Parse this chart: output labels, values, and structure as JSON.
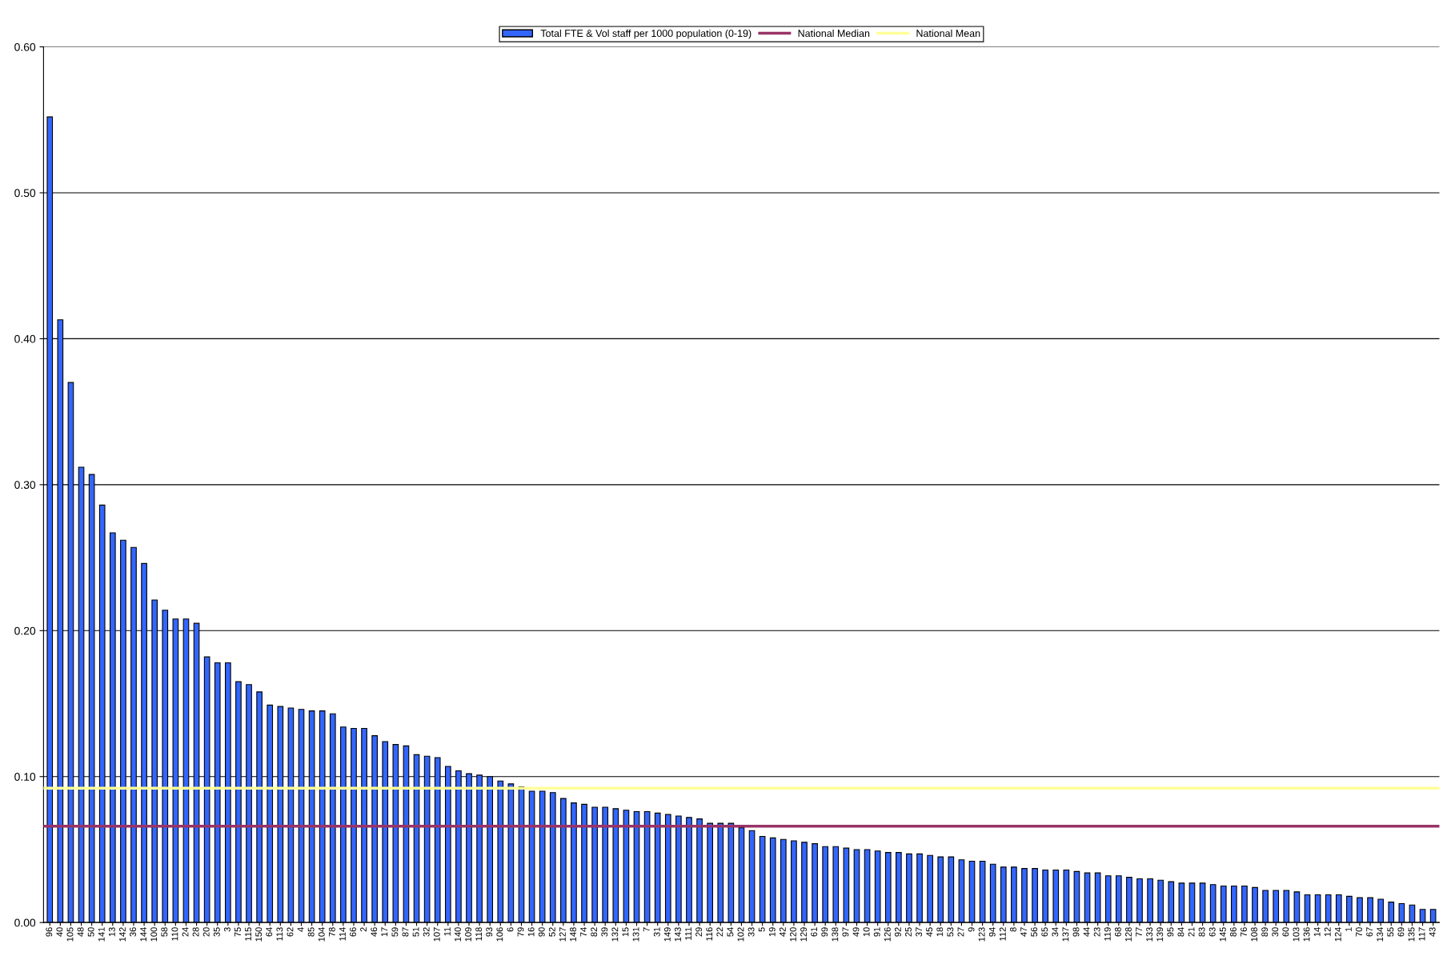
{
  "chart_data": {
    "type": "bar",
    "categories": [
      "96",
      "40",
      "105",
      "48",
      "50",
      "141",
      "13",
      "142",
      "36",
      "144",
      "100",
      "58",
      "110",
      "24",
      "28",
      "20",
      "35",
      "3",
      "75",
      "115",
      "150",
      "64",
      "113",
      "62",
      "4",
      "85",
      "104",
      "78",
      "114",
      "66",
      "2",
      "46",
      "17",
      "59",
      "87",
      "51",
      "32",
      "107",
      "11",
      "140",
      "109",
      "118",
      "93",
      "106",
      "6",
      "79",
      "16",
      "90",
      "52",
      "127",
      "148",
      "74",
      "82",
      "39",
      "132",
      "15",
      "131",
      "7",
      "31",
      "149",
      "143",
      "111",
      "29",
      "116",
      "22",
      "54",
      "102",
      "33",
      "5",
      "19",
      "42",
      "120",
      "129",
      "61",
      "99",
      "138",
      "97",
      "49",
      "10",
      "91",
      "126",
      "92",
      "25",
      "37",
      "45",
      "18",
      "53",
      "27",
      "9",
      "123",
      "94",
      "112",
      "8",
      "47",
      "56",
      "65",
      "34",
      "137",
      "98",
      "44",
      "23",
      "119",
      "68",
      "128",
      "77",
      "133",
      "139",
      "95",
      "84",
      "21",
      "83",
      "63",
      "145",
      "86",
      "76",
      "108",
      "89",
      "30",
      "60",
      "103",
      "136",
      "14",
      "12",
      "124",
      "1",
      "70",
      "67",
      "134",
      "55",
      "69",
      "135",
      "117",
      "43"
    ],
    "series": [
      {
        "name": "Total FTE & Vol staff per 1000 population (0-19)",
        "color": "#3366ff",
        "values": [
          0.552,
          0.413,
          0.37,
          0.312,
          0.307,
          0.286,
          0.267,
          0.262,
          0.257,
          0.246,
          0.221,
          0.214,
          0.208,
          0.208,
          0.205,
          0.182,
          0.178,
          0.178,
          0.165,
          0.163,
          0.158,
          0.149,
          0.148,
          0.147,
          0.146,
          0.145,
          0.145,
          0.143,
          0.134,
          0.133,
          0.133,
          0.128,
          0.124,
          0.122,
          0.121,
          0.115,
          0.114,
          0.113,
          0.107,
          0.104,
          0.102,
          0.101,
          0.1,
          0.097,
          0.095,
          0.093,
          0.09,
          0.09,
          0.089,
          0.085,
          0.082,
          0.081,
          0.079,
          0.079,
          0.078,
          0.077,
          0.076,
          0.076,
          0.075,
          0.074,
          0.073,
          0.072,
          0.071,
          0.068,
          0.068,
          0.068,
          0.065,
          0.063,
          0.059,
          0.058,
          0.057,
          0.056,
          0.055,
          0.054,
          0.052,
          0.052,
          0.051,
          0.05,
          0.05,
          0.049,
          0.048,
          0.048,
          0.047,
          0.047,
          0.046,
          0.045,
          0.045,
          0.043,
          0.042,
          0.042,
          0.04,
          0.038,
          0.038,
          0.037,
          0.037,
          0.036,
          0.036,
          0.036,
          0.035,
          0.034,
          0.034,
          0.032,
          0.032,
          0.031,
          0.03,
          0.03,
          0.029,
          0.028,
          0.027,
          0.027,
          0.027,
          0.026,
          0.025,
          0.025,
          0.025,
          0.024,
          0.022,
          0.022,
          0.022,
          0.021,
          0.019,
          0.019,
          0.019,
          0.019,
          0.018,
          0.017,
          0.017,
          0.016,
          0.014,
          0.013,
          0.012,
          0.009,
          0.009
        ]
      }
    ],
    "ref_lines": [
      {
        "axis": "y",
        "value": 0.066,
        "label": "National Median",
        "color": "#993366"
      },
      {
        "axis": "y",
        "value": 0.092,
        "label": "National Mean",
        "color": "#ffff99"
      }
    ],
    "ylim": [
      0,
      0.6
    ],
    "yticks": [
      {
        "value": 0,
        "label": "0.00"
      },
      {
        "value": 0.1,
        "label": "0.10"
      },
      {
        "value": 0.2,
        "label": "0.20"
      },
      {
        "value": 0.3,
        "label": "0.30"
      },
      {
        "value": 0.4,
        "label": "0.40"
      },
      {
        "value": 0.5,
        "label": "0.50"
      },
      {
        "value": 0.6,
        "label": "0.60"
      }
    ],
    "grid": "y",
    "legend": "top"
  }
}
